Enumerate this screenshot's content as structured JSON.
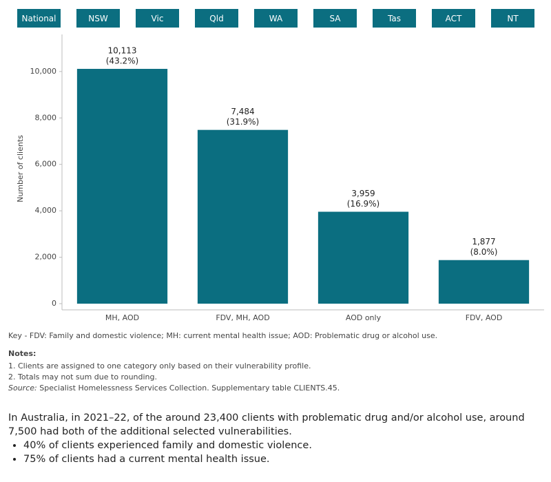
{
  "tabs": [
    "National",
    "NSW",
    "Vic",
    "Qld",
    "WA",
    "SA",
    "Tas",
    "ACT",
    "NT"
  ],
  "chart_data": {
    "type": "bar",
    "y_label": "Number of clients",
    "categories": [
      "MH, AOD",
      "FDV, MH, AOD",
      "AOD only",
      "FDV, AOD"
    ],
    "values": [
      10113,
      7484,
      3959,
      1877
    ],
    "value_labels": [
      "10,113",
      "7,484",
      "3,959",
      "1,877"
    ],
    "share_labels": [
      "(43.2%)",
      "(31.9%)",
      "(16.9%)",
      "(8.0%)"
    ],
    "color": "#0b6e80",
    "ylim": [
      0,
      11300
    ],
    "yticks": [
      0,
      {
        "value": 2000,
        "label": "2,000"
      },
      {
        "value": 4000,
        "label": "4,000"
      },
      {
        "value": 6000,
        "label": "6,000"
      },
      {
        "value": 8000,
        "label": "8,000"
      },
      {
        "value": 10000,
        "label": "10,000"
      }
    ],
    "grid": false
  },
  "key": "Key - FDV: Family and domestic violence; MH: current mental health issue; AOD: Problematic drug or alcohol use.",
  "notes": {
    "heading": "Notes:",
    "items": [
      "1.  Clients are assigned to one category only based on their vulnerability profile.",
      "2.  Totals may not sum due to rounding."
    ],
    "source_label": "Source:",
    "source": " Specialist Homelessness Services Collection. Supplementary table CLIENTS.45."
  },
  "summary": {
    "text": "In Australia, in 2021–22, of the around 23,400 clients with problematic drug and/or alcohol use, around 7,500 had both of the additional selected vulnerabilities.",
    "bullets": [
      "40% of clients experienced family and domestic violence.",
      "75% of clients had a current mental health issue."
    ]
  }
}
